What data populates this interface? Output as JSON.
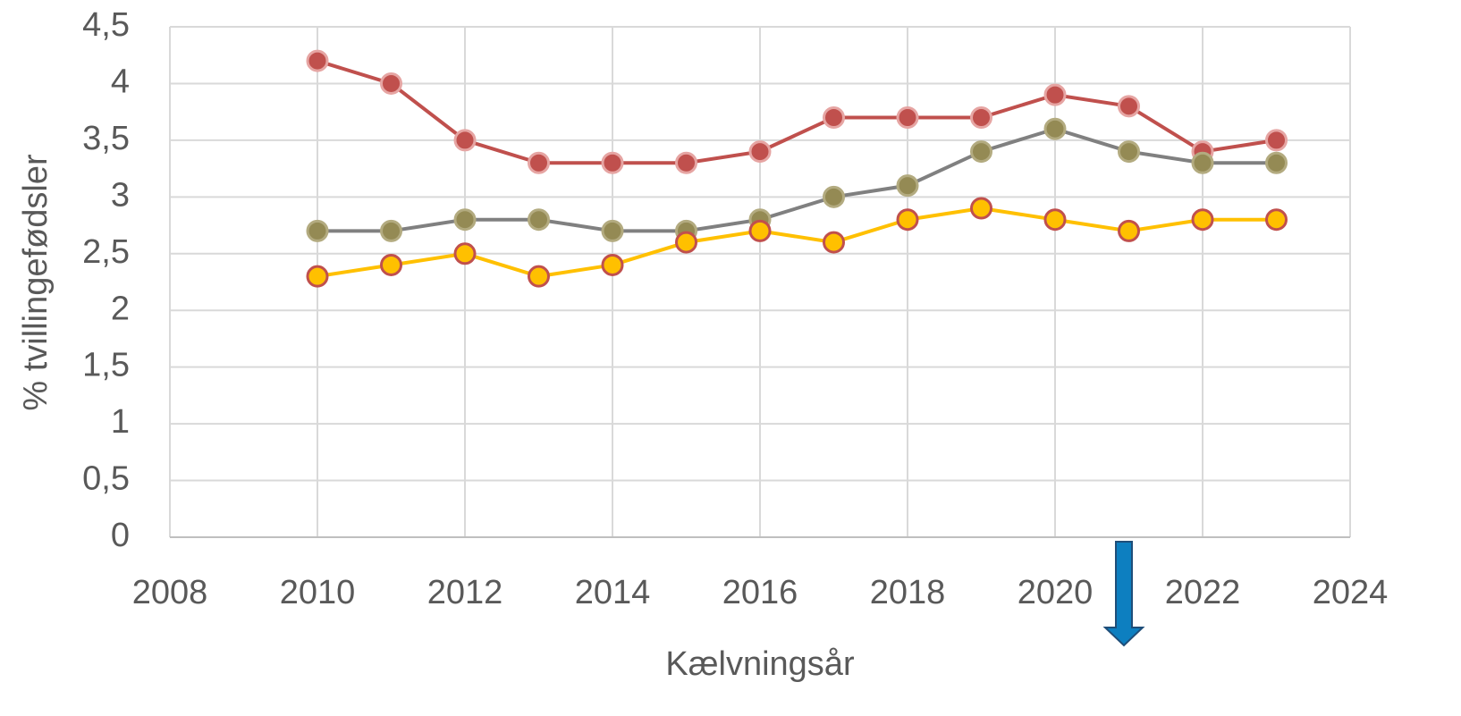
{
  "chart_data": {
    "type": "line",
    "xlabel": "Kælvningsår",
    "ylabel": "% tvillingefødsler",
    "x": [
      2010,
      2011,
      2012,
      2013,
      2014,
      2015,
      2016,
      2017,
      2018,
      2019,
      2020,
      2021,
      2022,
      2023
    ],
    "series": [
      {
        "color": "#c0504d",
        "marker_color": "#c0504d",
        "marker_edge": "#e6a5a3",
        "values": [
          4.2,
          4.0,
          3.5,
          3.3,
          3.3,
          3.3,
          3.4,
          3.7,
          3.7,
          3.7,
          3.9,
          3.8,
          3.4,
          3.5
        ]
      },
      {
        "color": "#808080",
        "marker_color": "#948a54",
        "marker_edge": "#b3ab80",
        "values": [
          2.7,
          2.7,
          2.8,
          2.8,
          2.7,
          2.7,
          2.8,
          3.0,
          3.1,
          3.4,
          3.6,
          3.4,
          3.3,
          3.3
        ]
      },
      {
        "color": "#ffc000",
        "marker_color": "#ffc000",
        "marker_edge": "#c0504d",
        "values": [
          2.3,
          2.4,
          2.5,
          2.3,
          2.4,
          2.6,
          2.7,
          2.6,
          2.8,
          2.9,
          2.8,
          2.7,
          2.8,
          2.8
        ]
      }
    ],
    "xlim": [
      2008,
      2024
    ],
    "xticks": [
      2008,
      2010,
      2012,
      2014,
      2016,
      2018,
      2020,
      2022,
      2024
    ],
    "ylim": [
      0,
      4.5
    ],
    "yticks": [
      0,
      {
        "value": 0.5,
        "label": "0,5"
      },
      1,
      {
        "value": 1.5,
        "label": "1,5"
      },
      2,
      {
        "value": 2.5,
        "label": "2,5"
      },
      3,
      {
        "value": 3.5,
        "label": "3,5"
      },
      4,
      {
        "value": 4.5,
        "label": "4,5"
      }
    ],
    "grid": true
  }
}
